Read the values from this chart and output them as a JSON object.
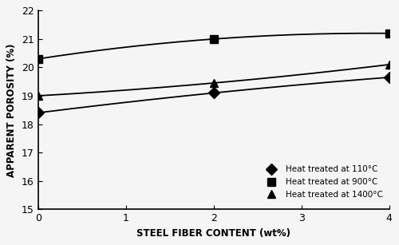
{
  "x": [
    0,
    2,
    4
  ],
  "series": [
    {
      "label": "Heat treated at 110°C",
      "y": [
        18.4,
        19.1,
        19.65
      ],
      "marker": "D",
      "color": "#000000"
    },
    {
      "label": "Heat treated at 900°C",
      "y": [
        20.3,
        21.0,
        21.2
      ],
      "marker": "s",
      "color": "#000000"
    },
    {
      "label": "Heat treated at 1400°C",
      "y": [
        19.0,
        19.45,
        20.1
      ],
      "marker": "^",
      "color": "#000000"
    }
  ],
  "xlabel": "STEEL FIBER CONTENT (wt%)",
  "ylabel": "APPARENT POROSITY (%)",
  "xlim": [
    0,
    4
  ],
  "ylim": [
    15,
    22
  ],
  "yticks": [
    15,
    16,
    17,
    18,
    19,
    20,
    21,
    22
  ],
  "xticks": [
    0,
    1,
    2,
    3,
    4
  ],
  "background_color": "#f5f5f5"
}
